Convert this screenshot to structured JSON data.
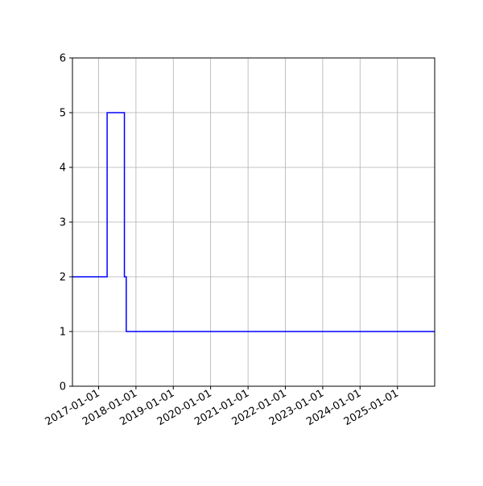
{
  "chart_data": {
    "type": "line",
    "drawstyle": "steps-post",
    "title": "",
    "xlabel": "",
    "ylabel": "",
    "grid": true,
    "x_is_date": true,
    "xlim": [
      "2016-04-20",
      "2025-12-31"
    ],
    "ylim": [
      0,
      6
    ],
    "xticks": [
      "2017-01-01",
      "2018-01-01",
      "2019-01-01",
      "2020-01-01",
      "2021-01-01",
      "2022-01-01",
      "2023-01-01",
      "2024-01-01",
      "2025-01-01"
    ],
    "yticks": [
      0,
      1,
      2,
      3,
      4,
      5,
      6
    ],
    "series": [
      {
        "color": "#0000ff",
        "x": [
          "2016-04-20",
          "2017-03-25",
          "2017-09-10",
          "2017-09-28",
          "2025-12-31"
        ],
        "y": [
          2,
          5,
          2,
          1,
          1
        ]
      }
    ]
  }
}
